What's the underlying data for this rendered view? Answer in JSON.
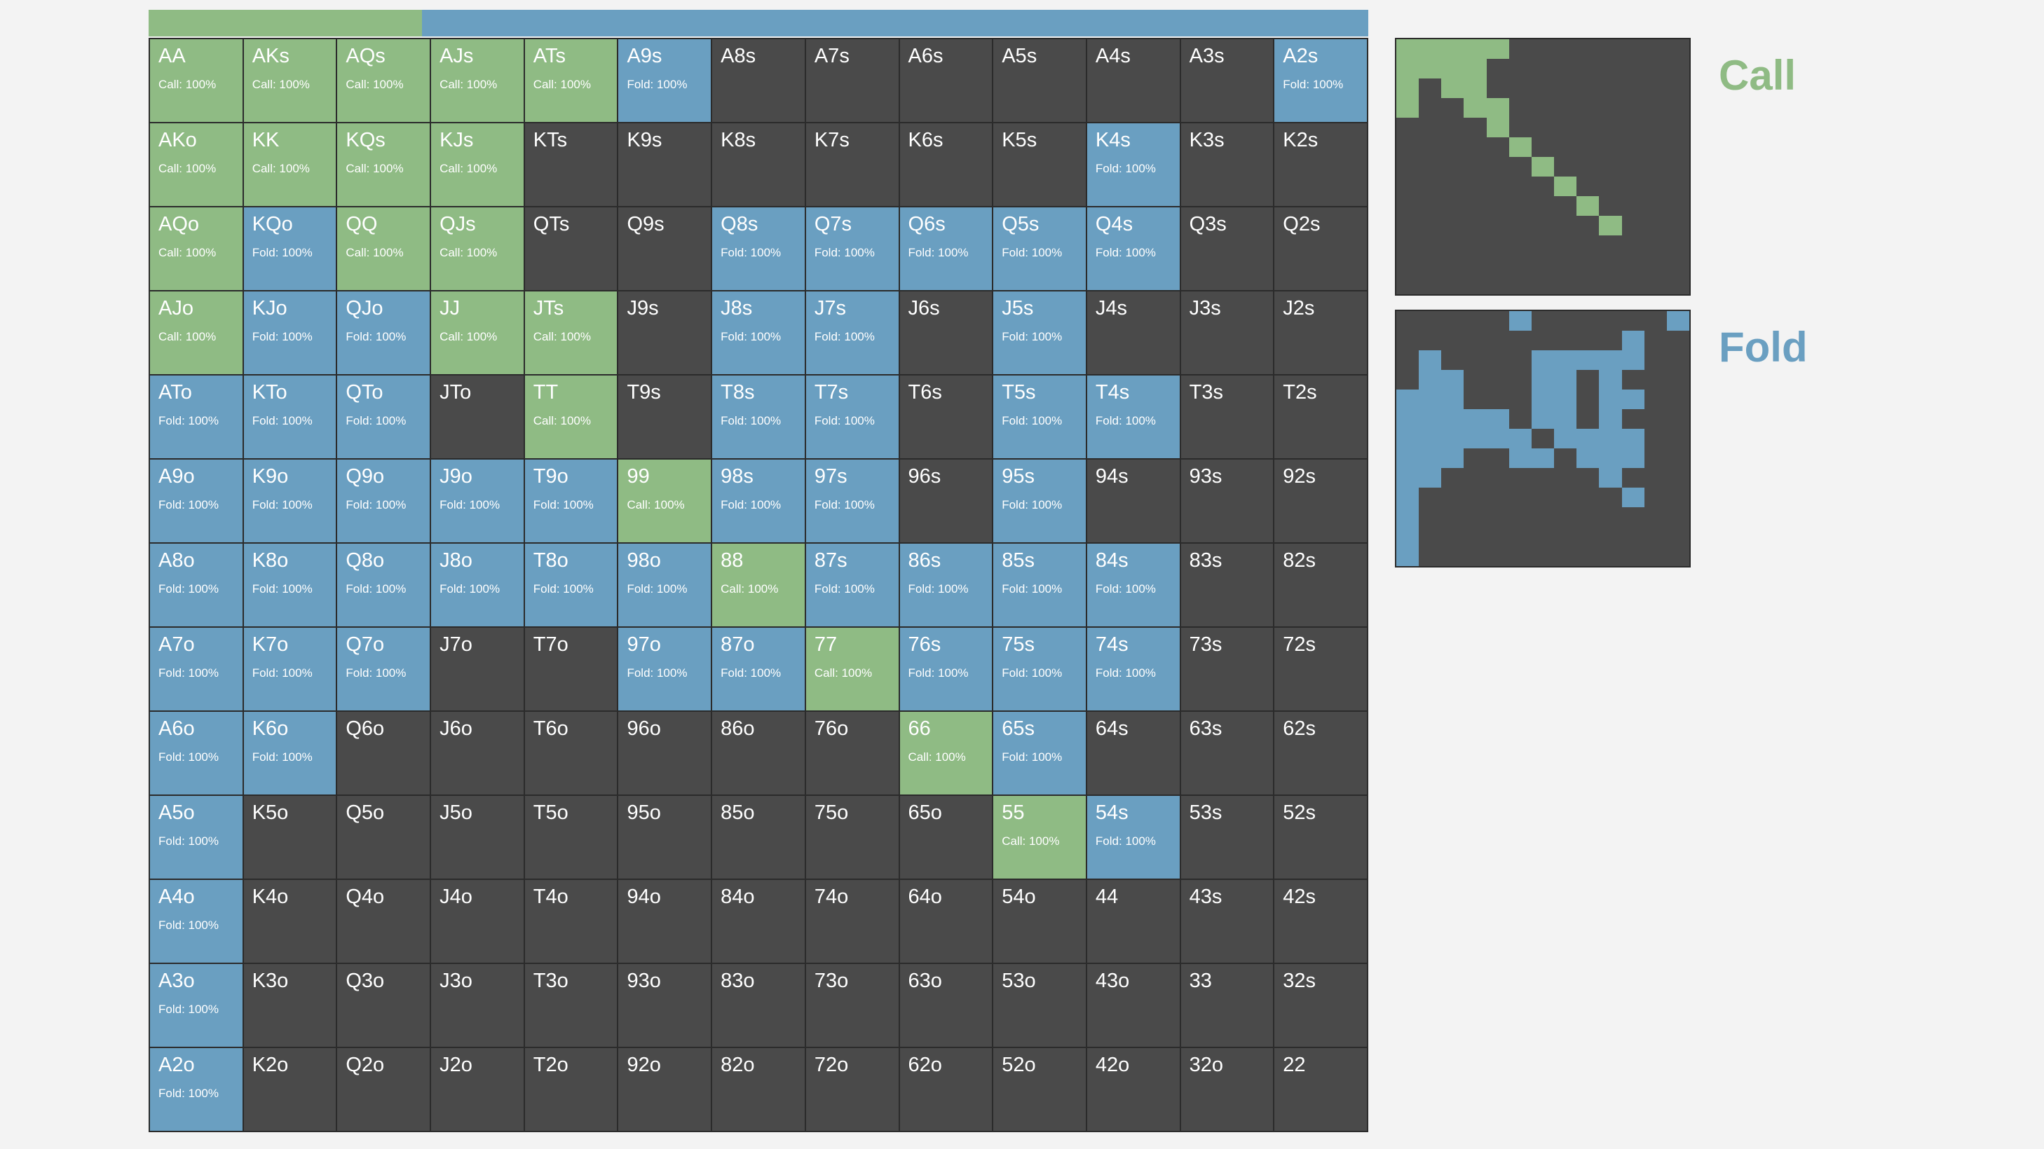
{
  "colors": {
    "call": "#8fbb84",
    "fold": "#6a9fc1",
    "empty": "#4a4a4a",
    "text": "#ffffff"
  },
  "summary_bar": {
    "segments": [
      {
        "action": "call",
        "fraction": 0.224
      },
      {
        "action": "fold",
        "fraction": 0.776
      }
    ]
  },
  "legend": [
    {
      "action": "call",
      "label": "Call"
    },
    {
      "action": "fold",
      "label": "Fold"
    }
  ],
  "grid": {
    "cells": [
      {
        "hand": "AA",
        "action": "call",
        "freq": "Call: 100%"
      },
      {
        "hand": "AKs",
        "action": "call",
        "freq": "Call: 100%"
      },
      {
        "hand": "AQs",
        "action": "call",
        "freq": "Call: 100%"
      },
      {
        "hand": "AJs",
        "action": "call",
        "freq": "Call: 100%"
      },
      {
        "hand": "ATs",
        "action": "call",
        "freq": "Call: 100%"
      },
      {
        "hand": "A9s",
        "action": "fold",
        "freq": "Fold: 100%"
      },
      {
        "hand": "A8s",
        "action": "",
        "freq": ""
      },
      {
        "hand": "A7s",
        "action": "",
        "freq": ""
      },
      {
        "hand": "A6s",
        "action": "",
        "freq": ""
      },
      {
        "hand": "A5s",
        "action": "",
        "freq": ""
      },
      {
        "hand": "A4s",
        "action": "",
        "freq": ""
      },
      {
        "hand": "A3s",
        "action": "",
        "freq": ""
      },
      {
        "hand": "A2s",
        "action": "fold",
        "freq": "Fold: 100%"
      },
      {
        "hand": "AKo",
        "action": "call",
        "freq": "Call: 100%"
      },
      {
        "hand": "KK",
        "action": "call",
        "freq": "Call: 100%"
      },
      {
        "hand": "KQs",
        "action": "call",
        "freq": "Call: 100%"
      },
      {
        "hand": "KJs",
        "action": "call",
        "freq": "Call: 100%"
      },
      {
        "hand": "KTs",
        "action": "",
        "freq": ""
      },
      {
        "hand": "K9s",
        "action": "",
        "freq": ""
      },
      {
        "hand": "K8s",
        "action": "",
        "freq": ""
      },
      {
        "hand": "K7s",
        "action": "",
        "freq": ""
      },
      {
        "hand": "K6s",
        "action": "",
        "freq": ""
      },
      {
        "hand": "K5s",
        "action": "",
        "freq": ""
      },
      {
        "hand": "K4s",
        "action": "fold",
        "freq": "Fold: 100%"
      },
      {
        "hand": "K3s",
        "action": "",
        "freq": ""
      },
      {
        "hand": "K2s",
        "action": "",
        "freq": ""
      },
      {
        "hand": "AQo",
        "action": "call",
        "freq": "Call: 100%"
      },
      {
        "hand": "KQo",
        "action": "fold",
        "freq": "Fold: 100%"
      },
      {
        "hand": "QQ",
        "action": "call",
        "freq": "Call: 100%"
      },
      {
        "hand": "QJs",
        "action": "call",
        "freq": "Call: 100%"
      },
      {
        "hand": "QTs",
        "action": "",
        "freq": ""
      },
      {
        "hand": "Q9s",
        "action": "",
        "freq": ""
      },
      {
        "hand": "Q8s",
        "action": "fold",
        "freq": "Fold: 100%"
      },
      {
        "hand": "Q7s",
        "action": "fold",
        "freq": "Fold: 100%"
      },
      {
        "hand": "Q6s",
        "action": "fold",
        "freq": "Fold: 100%"
      },
      {
        "hand": "Q5s",
        "action": "fold",
        "freq": "Fold: 100%"
      },
      {
        "hand": "Q4s",
        "action": "fold",
        "freq": "Fold: 100%"
      },
      {
        "hand": "Q3s",
        "action": "",
        "freq": ""
      },
      {
        "hand": "Q2s",
        "action": "",
        "freq": ""
      },
      {
        "hand": "AJo",
        "action": "call",
        "freq": "Call: 100%"
      },
      {
        "hand": "KJo",
        "action": "fold",
        "freq": "Fold: 100%"
      },
      {
        "hand": "QJo",
        "action": "fold",
        "freq": "Fold: 100%"
      },
      {
        "hand": "JJ",
        "action": "call",
        "freq": "Call: 100%"
      },
      {
        "hand": "JTs",
        "action": "call",
        "freq": "Call: 100%"
      },
      {
        "hand": "J9s",
        "action": "",
        "freq": ""
      },
      {
        "hand": "J8s",
        "action": "fold",
        "freq": "Fold: 100%"
      },
      {
        "hand": "J7s",
        "action": "fold",
        "freq": "Fold: 100%"
      },
      {
        "hand": "J6s",
        "action": "",
        "freq": ""
      },
      {
        "hand": "J5s",
        "action": "fold",
        "freq": "Fold: 100%"
      },
      {
        "hand": "J4s",
        "action": "",
        "freq": ""
      },
      {
        "hand": "J3s",
        "action": "",
        "freq": ""
      },
      {
        "hand": "J2s",
        "action": "",
        "freq": ""
      },
      {
        "hand": "ATo",
        "action": "fold",
        "freq": "Fold: 100%"
      },
      {
        "hand": "KTo",
        "action": "fold",
        "freq": "Fold: 100%"
      },
      {
        "hand": "QTo",
        "action": "fold",
        "freq": "Fold: 100%"
      },
      {
        "hand": "JTo",
        "action": "",
        "freq": ""
      },
      {
        "hand": "TT",
        "action": "call",
        "freq": "Call: 100%"
      },
      {
        "hand": "T9s",
        "action": "",
        "freq": ""
      },
      {
        "hand": "T8s",
        "action": "fold",
        "freq": "Fold: 100%"
      },
      {
        "hand": "T7s",
        "action": "fold",
        "freq": "Fold: 100%"
      },
      {
        "hand": "T6s",
        "action": "",
        "freq": ""
      },
      {
        "hand": "T5s",
        "action": "fold",
        "freq": "Fold: 100%"
      },
      {
        "hand": "T4s",
        "action": "fold",
        "freq": "Fold: 100%"
      },
      {
        "hand": "T3s",
        "action": "",
        "freq": ""
      },
      {
        "hand": "T2s",
        "action": "",
        "freq": ""
      },
      {
        "hand": "A9o",
        "action": "fold",
        "freq": "Fold: 100%"
      },
      {
        "hand": "K9o",
        "action": "fold",
        "freq": "Fold: 100%"
      },
      {
        "hand": "Q9o",
        "action": "fold",
        "freq": "Fold: 100%"
      },
      {
        "hand": "J9o",
        "action": "fold",
        "freq": "Fold: 100%"
      },
      {
        "hand": "T9o",
        "action": "fold",
        "freq": "Fold: 100%"
      },
      {
        "hand": "99",
        "action": "call",
        "freq": "Call: 100%"
      },
      {
        "hand": "98s",
        "action": "fold",
        "freq": "Fold: 100%"
      },
      {
        "hand": "97s",
        "action": "fold",
        "freq": "Fold: 100%"
      },
      {
        "hand": "96s",
        "action": "",
        "freq": ""
      },
      {
        "hand": "95s",
        "action": "fold",
        "freq": "Fold: 100%"
      },
      {
        "hand": "94s",
        "action": "",
        "freq": ""
      },
      {
        "hand": "93s",
        "action": "",
        "freq": ""
      },
      {
        "hand": "92s",
        "action": "",
        "freq": ""
      },
      {
        "hand": "A8o",
        "action": "fold",
        "freq": "Fold: 100%"
      },
      {
        "hand": "K8o",
        "action": "fold",
        "freq": "Fold: 100%"
      },
      {
        "hand": "Q8o",
        "action": "fold",
        "freq": "Fold: 100%"
      },
      {
        "hand": "J8o",
        "action": "fold",
        "freq": "Fold: 100%"
      },
      {
        "hand": "T8o",
        "action": "fold",
        "freq": "Fold: 100%"
      },
      {
        "hand": "98o",
        "action": "fold",
        "freq": "Fold: 100%"
      },
      {
        "hand": "88",
        "action": "call",
        "freq": "Call: 100%"
      },
      {
        "hand": "87s",
        "action": "fold",
        "freq": "Fold: 100%"
      },
      {
        "hand": "86s",
        "action": "fold",
        "freq": "Fold: 100%"
      },
      {
        "hand": "85s",
        "action": "fold",
        "freq": "Fold: 100%"
      },
      {
        "hand": "84s",
        "action": "fold",
        "freq": "Fold: 100%"
      },
      {
        "hand": "83s",
        "action": "",
        "freq": ""
      },
      {
        "hand": "82s",
        "action": "",
        "freq": ""
      },
      {
        "hand": "A7o",
        "action": "fold",
        "freq": "Fold: 100%"
      },
      {
        "hand": "K7o",
        "action": "fold",
        "freq": "Fold: 100%"
      },
      {
        "hand": "Q7o",
        "action": "fold",
        "freq": "Fold: 100%"
      },
      {
        "hand": "J7o",
        "action": "",
        "freq": ""
      },
      {
        "hand": "T7o",
        "action": "",
        "freq": ""
      },
      {
        "hand": "97o",
        "action": "fold",
        "freq": "Fold: 100%"
      },
      {
        "hand": "87o",
        "action": "fold",
        "freq": "Fold: 100%"
      },
      {
        "hand": "77",
        "action": "call",
        "freq": "Call: 100%"
      },
      {
        "hand": "76s",
        "action": "fold",
        "freq": "Fold: 100%"
      },
      {
        "hand": "75s",
        "action": "fold",
        "freq": "Fold: 100%"
      },
      {
        "hand": "74s",
        "action": "fold",
        "freq": "Fold: 100%"
      },
      {
        "hand": "73s",
        "action": "",
        "freq": ""
      },
      {
        "hand": "72s",
        "action": "",
        "freq": ""
      },
      {
        "hand": "A6o",
        "action": "fold",
        "freq": "Fold: 100%"
      },
      {
        "hand": "K6o",
        "action": "fold",
        "freq": "Fold: 100%"
      },
      {
        "hand": "Q6o",
        "action": "",
        "freq": ""
      },
      {
        "hand": "J6o",
        "action": "",
        "freq": ""
      },
      {
        "hand": "T6o",
        "action": "",
        "freq": ""
      },
      {
        "hand": "96o",
        "action": "",
        "freq": ""
      },
      {
        "hand": "86o",
        "action": "",
        "freq": ""
      },
      {
        "hand": "76o",
        "action": "",
        "freq": ""
      },
      {
        "hand": "66",
        "action": "call",
        "freq": "Call: 100%"
      },
      {
        "hand": "65s",
        "action": "fold",
        "freq": "Fold: 100%"
      },
      {
        "hand": "64s",
        "action": "",
        "freq": ""
      },
      {
        "hand": "63s",
        "action": "",
        "freq": ""
      },
      {
        "hand": "62s",
        "action": "",
        "freq": ""
      },
      {
        "hand": "A5o",
        "action": "fold",
        "freq": "Fold: 100%"
      },
      {
        "hand": "K5o",
        "action": "",
        "freq": ""
      },
      {
        "hand": "Q5o",
        "action": "",
        "freq": ""
      },
      {
        "hand": "J5o",
        "action": "",
        "freq": ""
      },
      {
        "hand": "T5o",
        "action": "",
        "freq": ""
      },
      {
        "hand": "95o",
        "action": "",
        "freq": ""
      },
      {
        "hand": "85o",
        "action": "",
        "freq": ""
      },
      {
        "hand": "75o",
        "action": "",
        "freq": ""
      },
      {
        "hand": "65o",
        "action": "",
        "freq": ""
      },
      {
        "hand": "55",
        "action": "call",
        "freq": "Call: 100%"
      },
      {
        "hand": "54s",
        "action": "fold",
        "freq": "Fold: 100%"
      },
      {
        "hand": "53s",
        "action": "",
        "freq": ""
      },
      {
        "hand": "52s",
        "action": "",
        "freq": ""
      },
      {
        "hand": "A4o",
        "action": "fold",
        "freq": "Fold: 100%"
      },
      {
        "hand": "K4o",
        "action": "",
        "freq": ""
      },
      {
        "hand": "Q4o",
        "action": "",
        "freq": ""
      },
      {
        "hand": "J4o",
        "action": "",
        "freq": ""
      },
      {
        "hand": "T4o",
        "action": "",
        "freq": ""
      },
      {
        "hand": "94o",
        "action": "",
        "freq": ""
      },
      {
        "hand": "84o",
        "action": "",
        "freq": ""
      },
      {
        "hand": "74o",
        "action": "",
        "freq": ""
      },
      {
        "hand": "64o",
        "action": "",
        "freq": ""
      },
      {
        "hand": "54o",
        "action": "",
        "freq": ""
      },
      {
        "hand": "44",
        "action": "",
        "freq": ""
      },
      {
        "hand": "43s",
        "action": "",
        "freq": ""
      },
      {
        "hand": "42s",
        "action": "",
        "freq": ""
      },
      {
        "hand": "A3o",
        "action": "fold",
        "freq": "Fold: 100%"
      },
      {
        "hand": "K3o",
        "action": "",
        "freq": ""
      },
      {
        "hand": "Q3o",
        "action": "",
        "freq": ""
      },
      {
        "hand": "J3o",
        "action": "",
        "freq": ""
      },
      {
        "hand": "T3o",
        "action": "",
        "freq": ""
      },
      {
        "hand": "93o",
        "action": "",
        "freq": ""
      },
      {
        "hand": "83o",
        "action": "",
        "freq": ""
      },
      {
        "hand": "73o",
        "action": "",
        "freq": ""
      },
      {
        "hand": "63o",
        "action": "",
        "freq": ""
      },
      {
        "hand": "53o",
        "action": "",
        "freq": ""
      },
      {
        "hand": "43o",
        "action": "",
        "freq": ""
      },
      {
        "hand": "33",
        "action": "",
        "freq": ""
      },
      {
        "hand": "32s",
        "action": "",
        "freq": ""
      },
      {
        "hand": "A2o",
        "action": "fold",
        "freq": "Fold: 100%"
      },
      {
        "hand": "K2o",
        "action": "",
        "freq": ""
      },
      {
        "hand": "Q2o",
        "action": "",
        "freq": ""
      },
      {
        "hand": "J2o",
        "action": "",
        "freq": ""
      },
      {
        "hand": "T2o",
        "action": "",
        "freq": ""
      },
      {
        "hand": "92o",
        "action": "",
        "freq": ""
      },
      {
        "hand": "82o",
        "action": "",
        "freq": ""
      },
      {
        "hand": "72o",
        "action": "",
        "freq": ""
      },
      {
        "hand": "62o",
        "action": "",
        "freq": ""
      },
      {
        "hand": "52o",
        "action": "",
        "freq": ""
      },
      {
        "hand": "42o",
        "action": "",
        "freq": ""
      },
      {
        "hand": "32o",
        "action": "",
        "freq": ""
      },
      {
        "hand": "22",
        "action": "",
        "freq": ""
      }
    ]
  }
}
